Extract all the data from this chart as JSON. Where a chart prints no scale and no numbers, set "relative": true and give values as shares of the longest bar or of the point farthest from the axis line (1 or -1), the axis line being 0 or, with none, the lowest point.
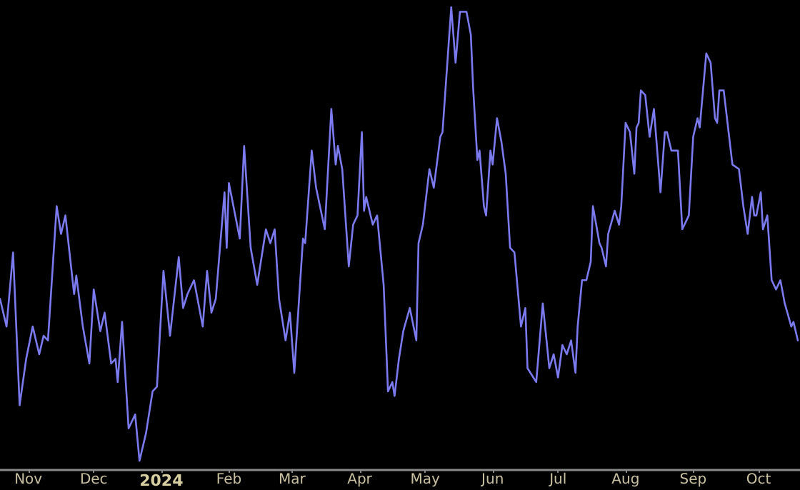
{
  "chart_data": {
    "type": "line",
    "relative": true,
    "color": "#7b7bef",
    "marker": "none",
    "line_style": "solid",
    "xlim": [
      "2023-10-19",
      "2024-10-20"
    ],
    "xticks": [
      {
        "value": "2023-11-01",
        "label": "Nov"
      },
      {
        "value": "2023-12-01",
        "label": "Dec"
      },
      {
        "value": "2024-01-01",
        "label": "2024"
      },
      {
        "value": "2024-02-01",
        "label": "Feb"
      },
      {
        "value": "2024-03-01",
        "label": "Mar"
      },
      {
        "value": "2024-04-01",
        "label": "Apr"
      },
      {
        "value": "2024-05-01",
        "label": "May"
      },
      {
        "value": "2024-06-01",
        "label": "Jun"
      },
      {
        "value": "2024-07-01",
        "label": "Jul"
      },
      {
        "value": "2024-08-01",
        "label": "Aug"
      },
      {
        "value": "2024-09-01",
        "label": "Sep"
      },
      {
        "value": "2024-10-01",
        "label": "Oct"
      }
    ],
    "x": [
      "2023-10-19",
      "2023-10-22",
      "2023-10-25",
      "2023-10-28",
      "2023-10-31",
      "2023-11-03",
      "2023-11-06",
      "2023-11-08",
      "2023-11-10",
      "2023-11-14",
      "2023-11-16",
      "2023-11-18",
      "2023-11-22",
      "2023-11-23",
      "2023-11-26",
      "2023-11-29",
      "2023-12-01",
      "2023-12-04",
      "2023-12-06",
      "2023-12-09",
      "2023-12-11",
      "2023-12-12",
      "2023-12-14",
      "2023-12-17",
      "2023-12-20",
      "2023-12-22",
      "2023-12-25",
      "2023-12-28",
      "2023-12-30",
      "2024-01-02",
      "2024-01-05",
      "2024-01-09",
      "2024-01-11",
      "2024-01-13",
      "2024-01-16",
      "2024-01-20",
      "2024-01-22",
      "2024-01-24",
      "2024-01-26",
      "2024-01-30",
      "2024-01-31",
      "2024-02-01",
      "2024-02-06",
      "2024-02-08",
      "2024-02-11",
      "2024-02-14",
      "2024-02-18",
      "2024-02-20",
      "2024-02-22",
      "2024-02-24",
      "2024-02-27",
      "2024-02-29",
      "2024-03-02",
      "2024-03-06",
      "2024-03-07",
      "2024-03-10",
      "2024-03-12",
      "2024-03-16",
      "2024-03-19",
      "2024-03-21",
      "2024-03-22",
      "2024-03-24",
      "2024-03-27",
      "2024-03-29",
      "2024-03-31",
      "2024-04-02",
      "2024-04-03",
      "2024-04-04",
      "2024-04-07",
      "2024-04-09",
      "2024-04-12",
      "2024-04-14",
      "2024-04-16",
      "2024-04-17",
      "2024-04-19",
      "2024-04-21",
      "2024-04-24",
      "2024-04-27",
      "2024-04-28",
      "2024-04-30",
      "2024-05-03",
      "2024-05-05",
      "2024-05-08",
      "2024-05-09",
      "2024-05-13",
      "2024-05-15",
      "2024-05-17",
      "2024-05-20",
      "2024-05-22",
      "2024-05-23",
      "2024-05-25",
      "2024-05-26",
      "2024-05-28",
      "2024-05-29",
      "2024-05-31",
      "2024-06-01",
      "2024-06-03",
      "2024-06-05",
      "2024-06-07",
      "2024-06-09",
      "2024-06-11",
      "2024-06-14",
      "2024-06-16",
      "2024-06-17",
      "2024-06-21",
      "2024-06-24",
      "2024-06-27",
      "2024-06-29",
      "2024-07-01",
      "2024-07-03",
      "2024-07-05",
      "2024-07-07",
      "2024-07-09",
      "2024-07-10",
      "2024-07-12",
      "2024-07-14",
      "2024-07-16",
      "2024-07-17",
      "2024-07-20",
      "2024-07-21",
      "2024-07-23",
      "2024-07-24",
      "2024-07-27",
      "2024-07-29",
      "2024-07-30",
      "2024-08-01",
      "2024-08-03",
      "2024-08-05",
      "2024-08-06",
      "2024-08-07",
      "2024-08-08",
      "2024-08-10",
      "2024-08-12",
      "2024-08-14",
      "2024-08-17",
      "2024-08-19",
      "2024-08-20",
      "2024-08-22",
      "2024-08-25",
      "2024-08-27",
      "2024-08-29",
      "2024-08-30",
      "2024-09-01",
      "2024-09-03",
      "2024-09-04",
      "2024-09-07",
      "2024-09-09",
      "2024-09-11",
      "2024-09-12",
      "2024-09-13",
      "2024-09-15",
      "2024-09-16",
      "2024-09-19",
      "2024-09-22",
      "2024-09-24",
      "2024-09-26",
      "2024-09-28",
      "2024-09-29",
      "2024-09-30",
      "2024-10-02",
      "2024-10-03",
      "2024-10-05",
      "2024-10-07",
      "2024-10-09",
      "2024-10-11",
      "2024-10-13",
      "2024-10-16",
      "2024-10-17",
      "2024-10-19"
    ],
    "values": [
      0.37,
      0.31,
      0.47,
      0.14,
      0.24,
      0.31,
      0.25,
      0.29,
      0.28,
      0.57,
      0.51,
      0.55,
      0.38,
      0.42,
      0.31,
      0.23,
      0.39,
      0.3,
      0.34,
      0.23,
      0.24,
      0.19,
      0.32,
      0.09,
      0.12,
      0.02,
      0.08,
      0.17,
      0.18,
      0.43,
      0.29,
      0.46,
      0.35,
      0.38,
      0.41,
      0.31,
      0.43,
      0.34,
      0.37,
      0.6,
      0.48,
      0.62,
      0.5,
      0.7,
      0.48,
      0.4,
      0.52,
      0.49,
      0.52,
      0.37,
      0.28,
      0.34,
      0.21,
      0.5,
      0.49,
      0.69,
      0.61,
      0.52,
      0.78,
      0.66,
      0.7,
      0.65,
      0.44,
      0.53,
      0.55,
      0.73,
      0.56,
      0.59,
      0.53,
      0.55,
      0.4,
      0.17,
      0.19,
      0.16,
      0.24,
      0.3,
      0.35,
      0.28,
      0.49,
      0.53,
      0.65,
      0.61,
      0.72,
      0.73,
      1.0,
      0.88,
      0.99,
      0.99,
      0.94,
      0.83,
      0.67,
      0.69,
      0.57,
      0.55,
      0.69,
      0.66,
      0.76,
      0.71,
      0.64,
      0.48,
      0.47,
      0.31,
      0.35,
      0.22,
      0.19,
      0.36,
      0.22,
      0.25,
      0.2,
      0.27,
      0.25,
      0.28,
      0.21,
      0.31,
      0.41,
      0.41,
      0.45,
      0.57,
      0.49,
      0.48,
      0.44,
      0.51,
      0.56,
      0.53,
      0.57,
      0.75,
      0.73,
      0.64,
      0.74,
      0.75,
      0.82,
      0.81,
      0.72,
      0.78,
      0.6,
      0.73,
      0.73,
      0.69,
      0.69,
      0.52,
      0.54,
      0.55,
      0.72,
      0.76,
      0.74,
      0.9,
      0.88,
      0.76,
      0.75,
      0.82,
      0.82,
      0.78,
      0.66,
      0.65,
      0.57,
      0.51,
      0.59,
      0.55,
      0.55,
      0.6,
      0.52,
      0.55,
      0.41,
      0.39,
      0.41,
      0.36,
      0.31,
      0.32,
      0.28
    ]
  }
}
